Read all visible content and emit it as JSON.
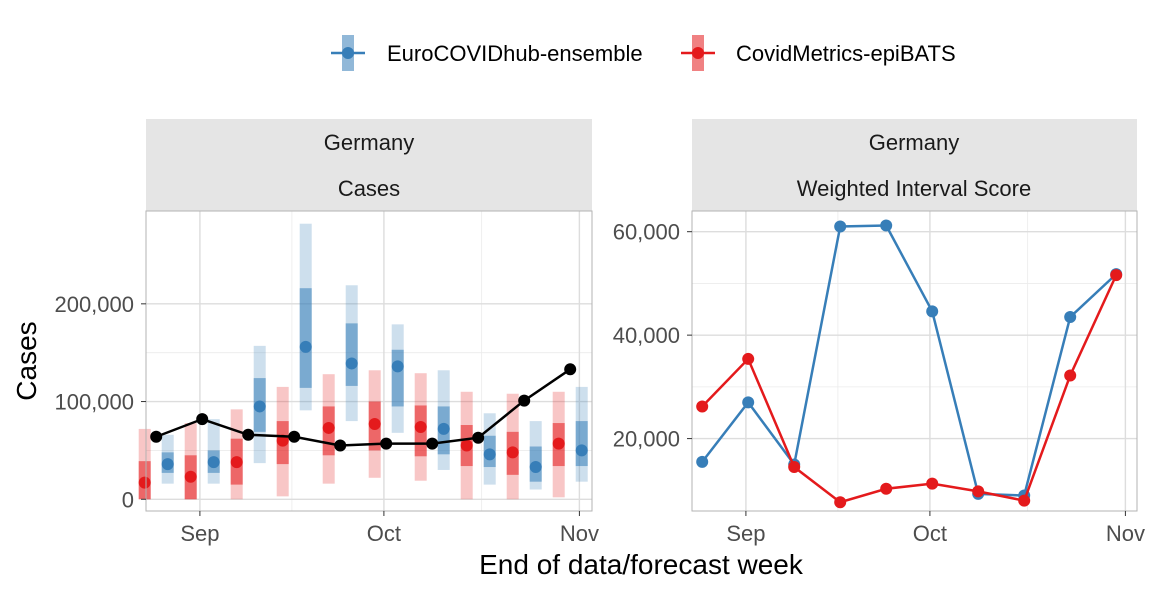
{
  "chart_data": [
    {
      "type": "line",
      "facet_top": "Germany",
      "facet_bottom": "Cases",
      "x_ticks": [
        "Sep",
        "Oct",
        "Nov"
      ],
      "y_ticks": [
        "0",
        "100,000",
        "200,000"
      ],
      "ylim": [
        -12000,
        295000
      ],
      "grid": true,
      "observed": {
        "x": [
          0.7,
          1.7,
          2.7,
          3.7,
          4.7,
          5.7,
          6.7,
          7.7,
          8.7,
          9.7
        ],
        "values": [
          64000,
          82000,
          66000,
          64000,
          55000,
          57000,
          57000,
          63000,
          101000,
          133000
        ]
      },
      "series": [
        {
          "name": "EuroCOVIDhub-ensemble",
          "x": [
            0.95,
            1.95,
            2.95,
            3.95,
            4.95,
            5.95,
            6.95,
            7.95,
            8.95,
            9.95
          ],
          "median": [
            36000,
            38000,
            95000,
            156000,
            139000,
            136000,
            72000,
            46000,
            33000,
            50000
          ],
          "inner": [
            [
              27000,
              48000
            ],
            [
              27000,
              50000
            ],
            [
              69000,
              124000
            ],
            [
              114000,
              216000
            ],
            [
              116000,
              180000
            ],
            [
              95000,
              153000
            ],
            [
              46000,
              95000
            ],
            [
              33000,
              65000
            ],
            [
              18000,
              54000
            ],
            [
              34000,
              80000
            ]
          ],
          "outer": [
            [
              16000,
              66000
            ],
            [
              16000,
              82000
            ],
            [
              37000,
              157000
            ],
            [
              91000,
              282000
            ],
            [
              80000,
              219000
            ],
            [
              68000,
              179000
            ],
            [
              30000,
              132000
            ],
            [
              15000,
              88000
            ],
            [
              10000,
              80000
            ],
            [
              18000,
              115000
            ]
          ]
        },
        {
          "name": "CovidMetrics-epiBATS",
          "x": [
            0.45,
            1.45,
            2.45,
            3.45,
            4.45,
            5.45,
            6.45,
            7.45,
            8.45,
            9.45
          ],
          "median": [
            17000,
            23000,
            38000,
            60000,
            73000,
            77000,
            74000,
            55000,
            48000,
            57000
          ],
          "inner": [
            [
              0,
              39000
            ],
            [
              0,
              45000
            ],
            [
              15000,
              62000
            ],
            [
              36000,
              80000
            ],
            [
              45000,
              95000
            ],
            [
              50000,
              100000
            ],
            [
              44000,
              96000
            ],
            [
              34000,
              76000
            ],
            [
              25000,
              69000
            ],
            [
              34000,
              78000
            ]
          ],
          "outer": [
            [
              0,
              72000
            ],
            [
              0,
              78000
            ],
            [
              0,
              92000
            ],
            [
              3000,
              115000
            ],
            [
              16000,
              128000
            ],
            [
              22000,
              132000
            ],
            [
              19000,
              129000
            ],
            [
              0,
              110000
            ],
            [
              0,
              108000
            ],
            [
              2000,
              110000
            ]
          ]
        }
      ]
    },
    {
      "type": "line",
      "facet_top": "Germany",
      "facet_bottom": "Weighted Interval Score",
      "x_ticks": [
        "Sep",
        "Oct",
        "Nov"
      ],
      "y_ticks": [
        "20,000",
        "40,000",
        "60,000"
      ],
      "ylim": [
        6000,
        64000
      ],
      "grid": true,
      "series": [
        {
          "name": "EuroCOVIDhub-ensemble",
          "x": [
            0.7,
            1.7,
            2.7,
            3.7,
            4.7,
            5.7,
            6.7,
            7.7,
            8.7,
            9.7
          ],
          "values": [
            15500,
            27000,
            15000,
            61000,
            61200,
            44600,
            9300,
            9000,
            43500,
            51800
          ]
        },
        {
          "name": "CovidMetrics-epiBATS",
          "x": [
            0.7,
            1.7,
            2.7,
            3.7,
            4.7,
            5.7,
            6.7,
            7.7,
            8.7,
            9.7
          ],
          "values": [
            26200,
            35400,
            14500,
            7700,
            10300,
            11300,
            9800,
            8000,
            32200,
            51600
          ]
        }
      ]
    }
  ],
  "legend": {
    "position": "top",
    "items": [
      {
        "label": "EuroCOVIDhub-ensemble",
        "color": "#377eb8"
      },
      {
        "label": "CovidMetrics-epiBATS",
        "color": "#e41a1c"
      }
    ]
  },
  "axes": {
    "xlabel": "End of data/forecast week",
    "ylabel": "Cases"
  },
  "colors": {
    "blue": "#377eb8",
    "red": "#e41a1c",
    "observed": "#000000",
    "strip_bg": "#e5e5e5",
    "grid": "#ebebeb",
    "panel_border": "#b3b3b3"
  }
}
